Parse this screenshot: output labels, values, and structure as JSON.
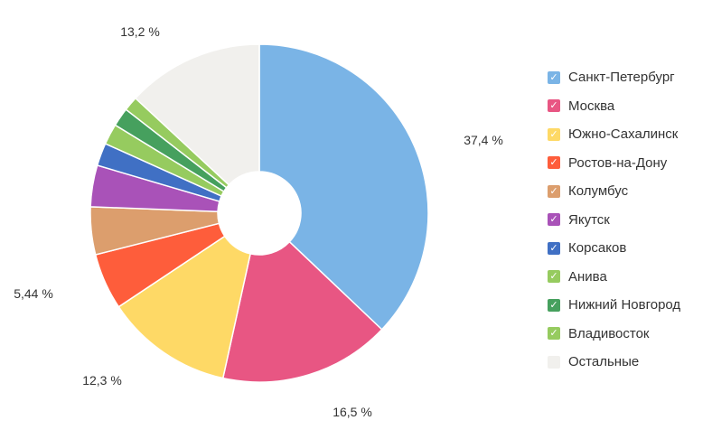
{
  "chart_data": {
    "type": "pie",
    "donut": true,
    "categories": [
      "Санкт-Петербург",
      "Москва",
      "Южно-Сахалинск",
      "Ростов-на-Дону",
      "Колумбус",
      "Якутск",
      "Корсаков",
      "Анива",
      "Нижний Новгород",
      "Владивосток",
      "Остальные"
    ],
    "values": [
      37.4,
      16.5,
      12.3,
      5.44,
      4.6,
      4.0,
      2.2,
      2.0,
      1.8,
      1.4,
      13.2
    ],
    "colors": [
      "#7ab4e6",
      "#e85683",
      "#fed966",
      "#fe5d3b",
      "#dc9e6d",
      "#a952b8",
      "#4070c4",
      "#96cb5f",
      "#46a05e",
      "#96cb5f",
      "#f1f0ed"
    ],
    "data_labels": {
      "Санкт-Петербург": "37,4 %",
      "Москва": "16,5 %",
      "Южно-Сахалинск": "12,3 %",
      "Ростов-на-Дону": "5,44 %",
      "Остальные": "13,2 %"
    },
    "legend_position": "right",
    "legend_checked": true
  }
}
